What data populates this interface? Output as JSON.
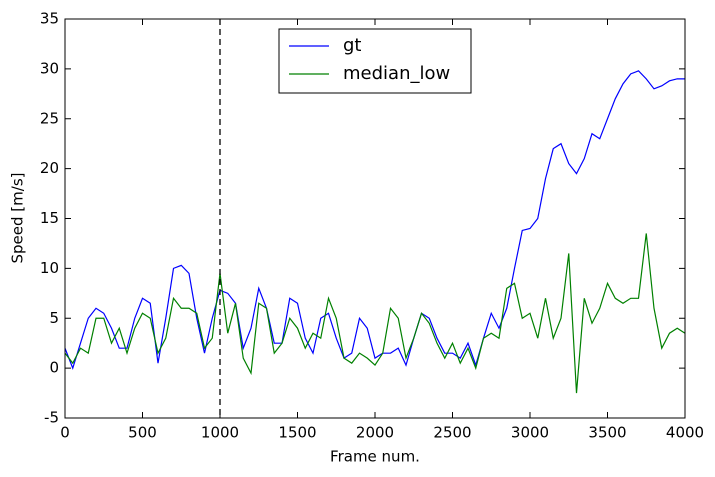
{
  "chart_data": {
    "type": "line",
    "xlabel": "Frame num.",
    "ylabel": "Speed [m/s]",
    "x": [
      0,
      50,
      100,
      150,
      200,
      250,
      300,
      350,
      400,
      450,
      500,
      550,
      600,
      650,
      700,
      750,
      800,
      850,
      900,
      950,
      1000,
      1050,
      1100,
      1150,
      1200,
      1250,
      1300,
      1350,
      1400,
      1450,
      1500,
      1550,
      1600,
      1650,
      1700,
      1750,
      1800,
      1850,
      1900,
      1950,
      2000,
      2050,
      2100,
      2150,
      2200,
      2250,
      2300,
      2350,
      2400,
      2450,
      2500,
      2550,
      2600,
      2650,
      2700,
      2750,
      2800,
      2850,
      2900,
      2950,
      3000,
      3050,
      3100,
      3150,
      3200,
      3250,
      3300,
      3350,
      3400,
      3450,
      3500,
      3550,
      3600,
      3650,
      3700,
      3750,
      3800,
      3850,
      3900,
      3950,
      4000
    ],
    "series": [
      {
        "name": "gt",
        "color": "#0000ff",
        "values": [
          2,
          0,
          2.5,
          5,
          6,
          5.5,
          4,
          2,
          2,
          5,
          7,
          6.5,
          0.5,
          5,
          10,
          10.3,
          9.5,
          5,
          1.5,
          5,
          7.8,
          7.5,
          6.5,
          2,
          4,
          8,
          6,
          2.5,
          2.5,
          7,
          6.5,
          3,
          1.5,
          5,
          5.5,
          3,
          1,
          1.5,
          5,
          4,
          1,
          1.5,
          1.5,
          2,
          0.3,
          3,
          5.5,
          5,
          3,
          1.5,
          1.5,
          1,
          2.5,
          0.3,
          3,
          5.5,
          4,
          6,
          10,
          13.8,
          14,
          15,
          19,
          22,
          22.5,
          20.5,
          19.5,
          21,
          23.5,
          23,
          25,
          27,
          28.5,
          29.5,
          29.8,
          29,
          28,
          28.3,
          28.8,
          29,
          29
        ]
      },
      {
        "name": "median_low",
        "color": "#008000",
        "values": [
          1.5,
          0.5,
          2,
          1.5,
          5,
          5,
          2.5,
          4,
          1.5,
          4,
          5.5,
          5,
          1.5,
          3,
          7,
          6,
          6,
          5.5,
          2,
          3,
          9.5,
          3.5,
          6.5,
          1,
          -0.5,
          6.5,
          6,
          1.5,
          2.5,
          5,
          4,
          2,
          3.5,
          3,
          7,
          5,
          1,
          0.5,
          1.5,
          1,
          0.3,
          1.5,
          6,
          5,
          1,
          3,
          5.5,
          4.5,
          2.5,
          1,
          2.5,
          0.5,
          2,
          0,
          3,
          3.5,
          3,
          8,
          8.5,
          5,
          5.5,
          3,
          7,
          3,
          5,
          11.5,
          -2.5,
          7,
          4.5,
          6,
          8.5,
          7,
          6.5,
          7,
          7,
          13.5,
          6,
          2,
          3.5,
          4,
          3.5
        ]
      }
    ],
    "vlines": [
      1000
    ],
    "xlim": [
      0,
      4000
    ],
    "xticks": [
      0,
      500,
      1000,
      1500,
      2000,
      2500,
      3000,
      3500,
      4000
    ],
    "ylim": [
      -5,
      35
    ],
    "yticks": [
      -5,
      0,
      5,
      10,
      15,
      20,
      25,
      30,
      35
    ],
    "legend": "upper center"
  }
}
